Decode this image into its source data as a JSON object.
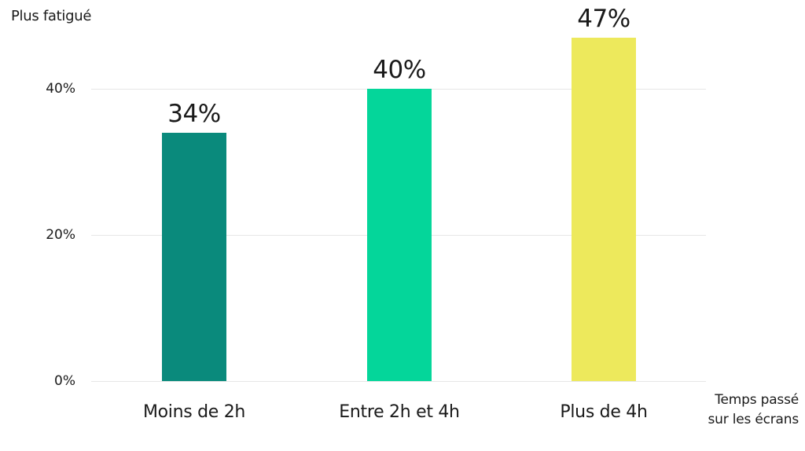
{
  "chart_data": {
    "type": "bar",
    "title": "",
    "ylabel": "Plus fatigué",
    "xlabel": "Temps passé sur les écrans",
    "xlabel_lines": [
      "Temps passé",
      "sur les écrans"
    ],
    "categories": [
      "Moins de 2h",
      "Entre 2h et 4h",
      "Plus de 4h"
    ],
    "values": [
      34,
      40,
      47
    ],
    "value_labels": [
      "34%",
      "40%",
      "47%"
    ],
    "colors": [
      "#0a8a7c",
      "#04d69a",
      "#ede95c"
    ],
    "ylim": [
      0,
      50
    ],
    "yticks": [
      0,
      20,
      40
    ],
    "ytick_labels": [
      "0%",
      "20%",
      "40%"
    ],
    "grid": true,
    "legend": null
  }
}
